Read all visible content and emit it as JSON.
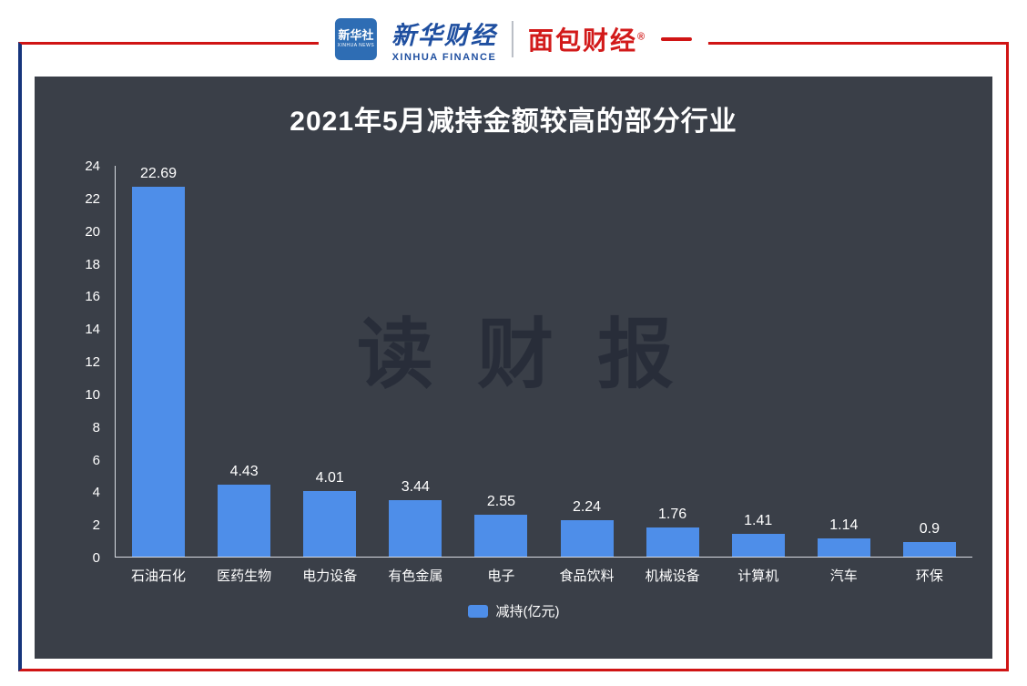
{
  "header": {
    "xinhua_news": {
      "line1": "新华社",
      "line2": "XINHUA NEWS"
    },
    "xinhua_finance": {
      "cn": "新华财经",
      "en": "XINHUA FINANCE"
    },
    "mianbao": {
      "cn": "面包财经",
      "reg": "®"
    }
  },
  "chart_data": {
    "type": "bar",
    "title": "2021年5月减持金额较高的部分行业",
    "categories": [
      "石油石化",
      "医药生物",
      "电力设备",
      "有色金属",
      "电子",
      "食品饮料",
      "机械设备",
      "计算机",
      "汽车",
      "环保"
    ],
    "values": [
      22.69,
      4.43,
      4.01,
      3.44,
      2.55,
      2.24,
      1.76,
      1.41,
      1.14,
      0.9
    ],
    "value_labels": [
      "22.69",
      "4.43",
      "4.01",
      "3.44",
      "2.55",
      "2.24",
      "1.76",
      "1.41",
      "1.14",
      "0.9"
    ],
    "legend": "减持(亿元)",
    "ylabel": "",
    "xlabel": "",
    "ylim": [
      0,
      24
    ],
    "ytick_step": 2,
    "bar_color": "#4e8ee9",
    "background_color": "#3a3f48",
    "watermark": "读财报",
    "grid": false,
    "legend_position": "bottom"
  }
}
